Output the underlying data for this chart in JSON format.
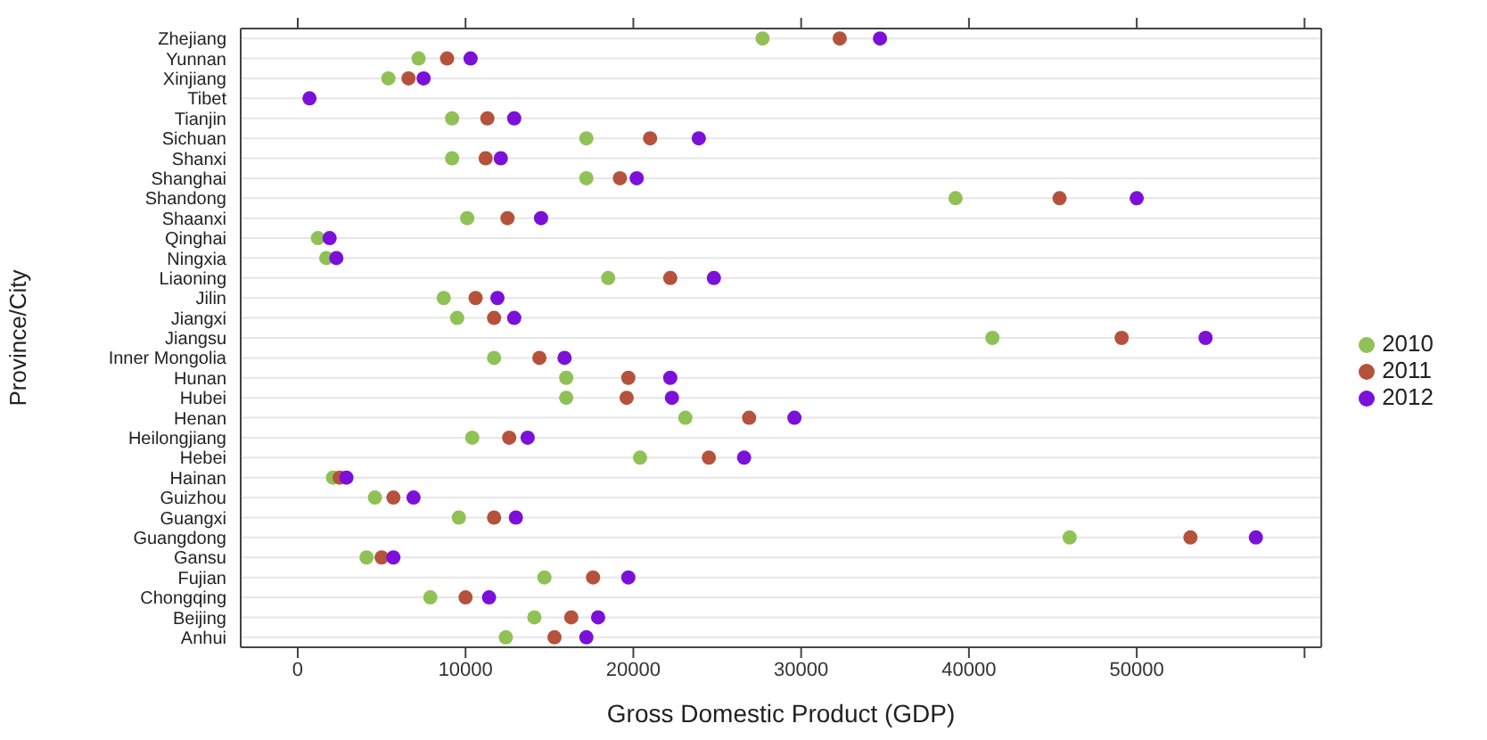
{
  "chart_data": {
    "type": "scatter",
    "orientation": "horizontal",
    "xlabel": "Gross Domestic Product (GDP)",
    "ylabel": "Province/City",
    "categories": [
      "Zhejiang",
      "Yunnan",
      "Xinjiang",
      "Tibet",
      "Tianjin",
      "Sichuan",
      "Shanxi",
      "Shanghai",
      "Shandong",
      "Shaanxi",
      "Qinghai",
      "Ningxia",
      "Liaoning",
      "Jilin",
      "Jiangxi",
      "Jiangsu",
      "Inner Mongolia",
      "Hunan",
      "Hubei",
      "Henan",
      "Heilongjiang",
      "Hebei",
      "Hainan",
      "Guizhou",
      "Guangxi",
      "Guangdong",
      "Gansu",
      "Fujian",
      "Chongqing",
      "Beijing",
      "Anhui"
    ],
    "series": [
      {
        "name": "2010",
        "color": "#8fc155",
        "values": [
          27700,
          7200,
          5400,
          null,
          9200,
          17200,
          9200,
          17200,
          39200,
          10100,
          1200,
          1700,
          18500,
          8700,
          9500,
          41400,
          11700,
          16000,
          16000,
          23100,
          10400,
          20400,
          2100,
          4600,
          9600,
          46000,
          4100,
          14700,
          7900,
          14100,
          12400
        ]
      },
      {
        "name": "2011",
        "color": "#b5523b",
        "values": [
          32300,
          8900,
          6600,
          null,
          11300,
          21000,
          11200,
          19200,
          45400,
          12500,
          null,
          null,
          22200,
          10600,
          11700,
          49100,
          14400,
          19700,
          19600,
          26900,
          12600,
          24500,
          2500,
          5700,
          11700,
          53200,
          5000,
          17600,
          10000,
          16300,
          15300
        ]
      },
      {
        "name": "2012",
        "color": "#7b10d8",
        "values": [
          34700,
          10300,
          7500,
          700,
          12900,
          23900,
          12100,
          20200,
          50000,
          14500,
          1900,
          2300,
          24800,
          11900,
          12900,
          54100,
          15900,
          22200,
          22300,
          29600,
          13700,
          26600,
          2900,
          6900,
          13000,
          57100,
          5700,
          19700,
          11400,
          17900,
          17200
        ]
      }
    ],
    "xlim": [
      -3400,
      61000
    ],
    "xticks": [
      0,
      10000,
      20000,
      30000,
      40000,
      50000,
      {
        "value": 60000,
        "label": null
      }
    ],
    "grid": "y",
    "legend": "right",
    "marker": "circle"
  }
}
